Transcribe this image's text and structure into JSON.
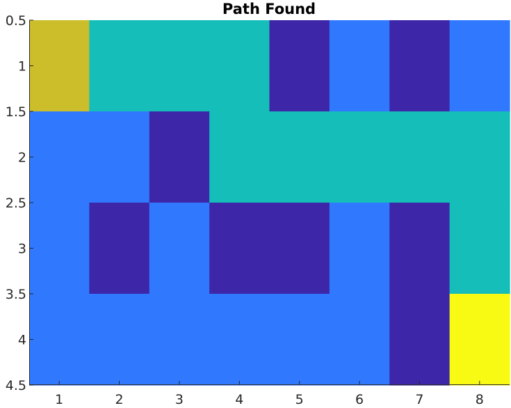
{
  "chart_data": {
    "type": "heatmap",
    "title": "Path Found",
    "xlabel": "",
    "ylabel": "",
    "x_ticks": [
      1,
      2,
      3,
      4,
      5,
      6,
      7,
      8
    ],
    "x_tick_labels": [
      "1",
      "2",
      "3",
      "4",
      "5",
      "6",
      "7",
      "8"
    ],
    "y_ticks": [
      0.5,
      1,
      1.5,
      2,
      2.5,
      3,
      3.5,
      4,
      4.5
    ],
    "y_tick_labels": [
      "0.5",
      "1",
      "1.5",
      "2",
      "2.5",
      "3",
      "3.5",
      "4",
      "4.5"
    ],
    "xlim": [
      0.5,
      8.5
    ],
    "ylim": [
      0.5,
      4.5
    ],
    "y_axis_reversed": true,
    "grid": false,
    "colormap": {
      "0": "#3E26A8",
      "1": "#3079FF",
      "2": "#15BEB9",
      "3": "#CBBE2A",
      "4": "#F9FA14"
    },
    "matrix": [
      [
        3,
        2,
        2,
        2,
        0,
        1,
        0,
        1
      ],
      [
        1,
        1,
        0,
        2,
        2,
        2,
        2,
        2
      ],
      [
        1,
        0,
        1,
        0,
        0,
        1,
        0,
        2
      ],
      [
        1,
        1,
        1,
        1,
        1,
        1,
        0,
        4
      ]
    ]
  }
}
